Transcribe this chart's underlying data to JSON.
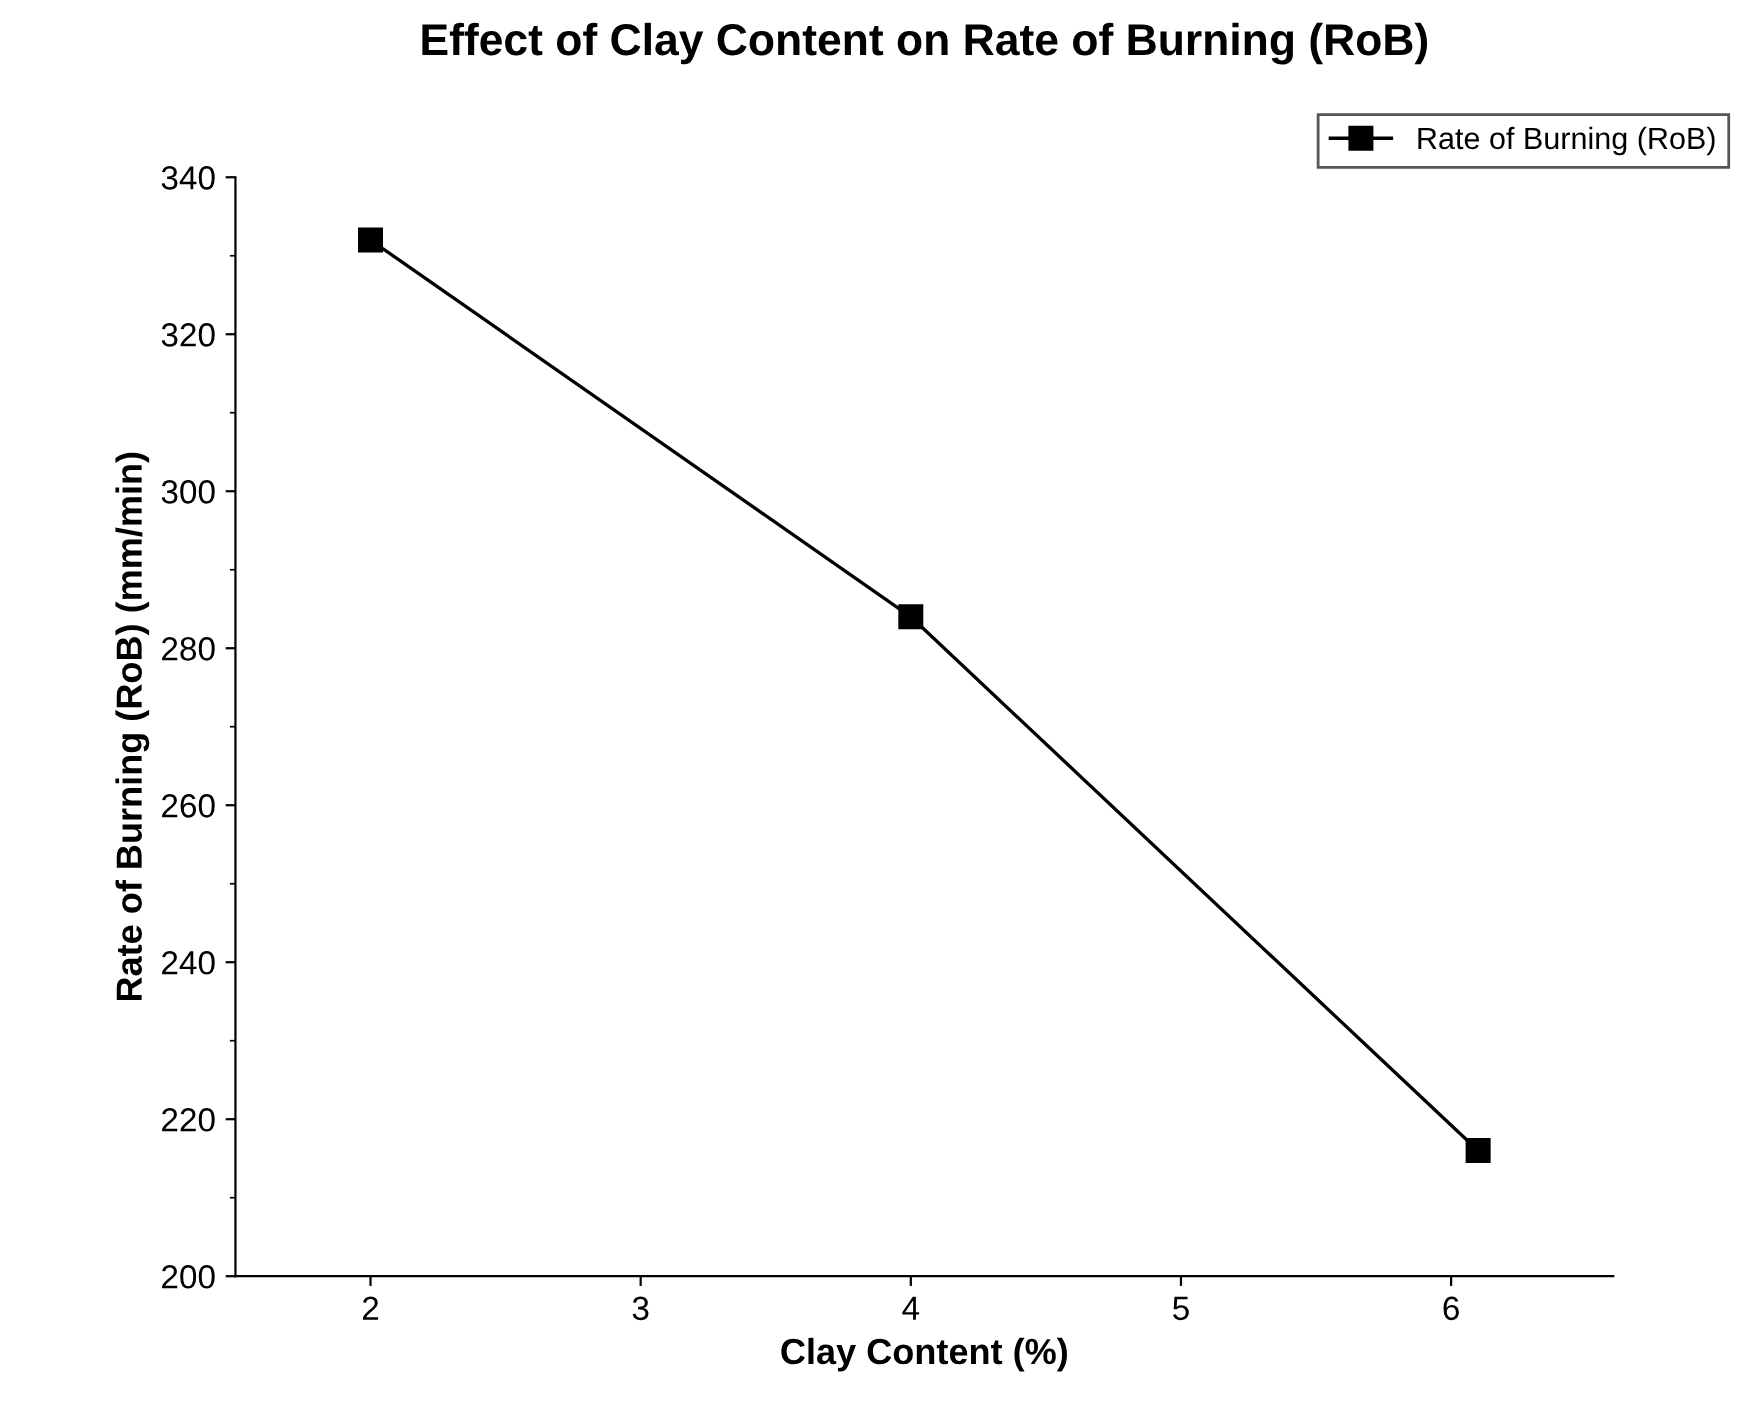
{
  "chart_data": {
    "type": "line",
    "title": "Effect of Clay Content on Rate of Burning (RoB)",
    "xlabel": "Clay Content (%)",
    "ylabel": "Rate of Burning (RoB) (mm/min)",
    "x": [
      2,
      4,
      6.1
    ],
    "series": [
      {
        "name": "Rate of Burning (RoB)",
        "color": "#000000",
        "values": [
          332,
          284,
          216
        ]
      }
    ],
    "xlim": [
      1.5,
      6.6
    ],
    "xticks": [
      2,
      3,
      4,
      5,
      6
    ],
    "ylim": [
      200,
      340
    ],
    "yticks": [
      200,
      220,
      240,
      260,
      280,
      300,
      320,
      340
    ],
    "marker": "square",
    "line_style": "solid",
    "grid": false,
    "legend": "top right"
  }
}
